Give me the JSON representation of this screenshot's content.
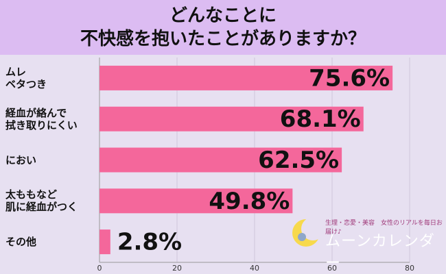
{
  "chart_data": {
    "type": "bar",
    "orientation": "horizontal",
    "title": "どんなことに\n不快感を抱いたことがありますか？",
    "categories": [
      "ムレ\nベタつき",
      "経血が絡んで\n拭き取りにくい",
      "におい",
      "太ももなど\n肌に経血がつく",
      "その他"
    ],
    "values": [
      75.6,
      68.1,
      62.5,
      49.8,
      2.8
    ],
    "value_labels": [
      "75.6%",
      "68.1%",
      "62.5%",
      "49.8%",
      "2.8%"
    ],
    "color": "#f4679b",
    "xlim": [
      0,
      80
    ],
    "xticks": [
      0,
      20,
      40,
      60,
      80
    ],
    "grid": true,
    "annotations": [
      "生理・恋愛・美容　女性のリアルを毎日お届け♪",
      "ムーンカレンダー"
    ]
  }
}
